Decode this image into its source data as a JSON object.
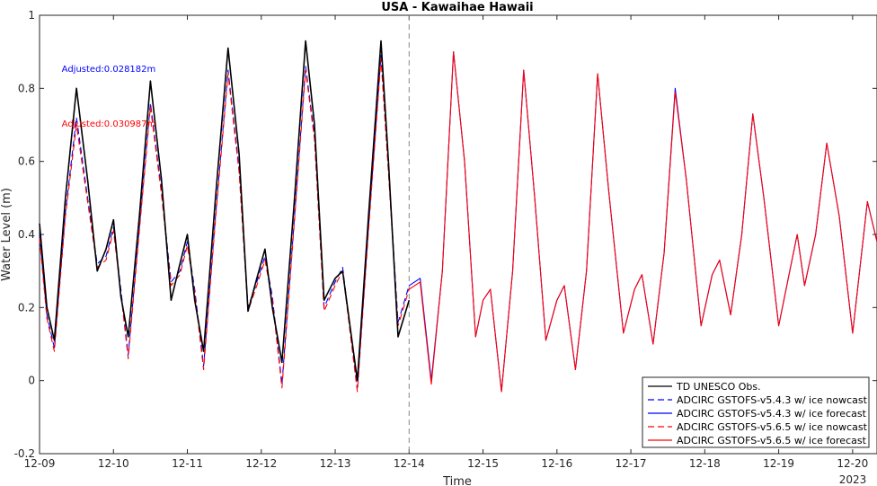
{
  "chart_data": {
    "type": "line",
    "title": "USA - Kawaihae Hawaii",
    "xlabel": "Time",
    "ylabel": "Water Level (m)",
    "xlim": [
      0,
      11.33
    ],
    "ylim": [
      -0.2,
      1
    ],
    "x_ticks": [
      {
        "x": 0,
        "label": "12-09"
      },
      {
        "x": 1,
        "label": "12-10"
      },
      {
        "x": 2,
        "label": "12-11"
      },
      {
        "x": 3,
        "label": "12-12"
      },
      {
        "x": 4,
        "label": "12-13"
      },
      {
        "x": 5,
        "label": "12-14"
      },
      {
        "x": 6,
        "label": "12-15"
      },
      {
        "x": 7,
        "label": "12-16"
      },
      {
        "x": 8,
        "label": "12-17"
      },
      {
        "x": 9,
        "label": "12-18"
      },
      {
        "x": 10,
        "label": "12-19"
      },
      {
        "x": 11,
        "label": "12-20"
      }
    ],
    "x_year_label": "2023",
    "y_ticks": [
      {
        "y": -0.2,
        "label": "-0.2"
      },
      {
        "y": 0,
        "label": "0"
      },
      {
        "y": 0.2,
        "label": "0.2"
      },
      {
        "y": 0.4,
        "label": "0.4"
      },
      {
        "y": 0.6,
        "label": "0.6"
      },
      {
        "y": 0.8,
        "label": "0.8"
      },
      {
        "y": 1,
        "label": "1"
      }
    ],
    "grid": false,
    "legend_position": "bottom-right",
    "forecast_start_x": 5,
    "annotations": [
      {
        "text": "Adjusted:0.028182m",
        "color": "#0000ff",
        "x": 0.3,
        "y": 0.845
      },
      {
        "text": "Adjusted:0.030987m",
        "color": "#ff0000",
        "x": 0.3,
        "y": 0.695
      }
    ],
    "series": [
      {
        "name": "TD UNESCO Obs.",
        "color": "#000000",
        "style": "solid",
        "x": [
          0,
          0.1,
          0.2,
          0.35,
          0.5,
          0.65,
          0.78,
          0.9,
          1.0,
          1.1,
          1.2,
          1.35,
          1.5,
          1.65,
          1.78,
          1.9,
          2.0,
          2.1,
          2.22,
          2.38,
          2.55,
          2.7,
          2.82,
          2.94,
          3.05,
          3.15,
          3.28,
          3.45,
          3.6,
          3.72,
          3.85,
          4.0,
          4.1,
          4.3,
          4.45,
          4.62,
          4.72,
          4.85,
          5.0
        ],
        "y": [
          0.43,
          0.2,
          0.11,
          0.5,
          0.8,
          0.55,
          0.3,
          0.36,
          0.44,
          0.23,
          0.12,
          0.45,
          0.82,
          0.55,
          0.22,
          0.32,
          0.4,
          0.22,
          0.08,
          0.5,
          0.91,
          0.62,
          0.19,
          0.28,
          0.36,
          0.2,
          0.05,
          0.5,
          0.93,
          0.7,
          0.22,
          0.28,
          0.3,
          0.0,
          0.45,
          0.93,
          0.6,
          0.12,
          0.22
        ]
      },
      {
        "name": "ADCIRC GSTOFS-v5.4.3 w/ ice nowcast",
        "color": "#0000ff",
        "style": "dashed",
        "x": [
          0,
          0.1,
          0.2,
          0.35,
          0.5,
          0.65,
          0.78,
          0.9,
          1.0,
          1.1,
          1.2,
          1.35,
          1.5,
          1.65,
          1.78,
          1.9,
          2.0,
          2.1,
          2.22,
          2.38,
          2.55,
          2.7,
          2.82,
          2.94,
          3.05,
          3.15,
          3.28,
          3.45,
          3.6,
          3.72,
          3.85,
          4.0,
          4.1,
          4.3,
          4.45,
          4.62,
          4.72,
          4.85,
          5.0
        ],
        "y": [
          0.4,
          0.18,
          0.09,
          0.46,
          0.72,
          0.5,
          0.32,
          0.34,
          0.42,
          0.25,
          0.07,
          0.42,
          0.76,
          0.52,
          0.27,
          0.3,
          0.38,
          0.25,
          0.04,
          0.45,
          0.85,
          0.58,
          0.2,
          0.27,
          0.34,
          0.23,
          -0.01,
          0.45,
          0.86,
          0.67,
          0.2,
          0.27,
          0.31,
          -0.02,
          0.42,
          0.89,
          0.58,
          0.16,
          0.26
        ]
      },
      {
        "name": "ADCIRC GSTOFS-v5.4.3 w/ ice forecast",
        "color": "#0000ff",
        "style": "solid",
        "x": [
          5.0,
          5.15,
          5.3,
          5.45,
          5.6,
          5.75,
          5.9,
          6.0,
          6.1,
          6.25,
          6.4,
          6.55,
          6.7,
          6.85,
          7.0,
          7.1,
          7.25,
          7.4,
          7.55,
          7.7,
          7.9,
          8.05,
          8.15,
          8.3,
          8.45,
          8.6,
          8.75,
          8.95,
          9.1,
          9.2,
          9.35,
          9.5,
          9.65,
          9.8,
          10.0,
          10.15,
          10.25,
          10.35,
          10.5,
          10.65,
          10.82,
          11.0,
          11.2,
          11.33
        ],
        "y": [
          0.26,
          0.28,
          0.0,
          0.3,
          0.9,
          0.6,
          0.12,
          0.22,
          0.25,
          -0.03,
          0.3,
          0.85,
          0.5,
          0.11,
          0.22,
          0.26,
          0.03,
          0.3,
          0.84,
          0.52,
          0.13,
          0.25,
          0.29,
          0.1,
          0.35,
          0.8,
          0.55,
          0.15,
          0.29,
          0.33,
          0.18,
          0.4,
          0.73,
          0.5,
          0.15,
          0.3,
          0.4,
          0.26,
          0.4,
          0.65,
          0.45,
          0.13,
          0.49,
          0.38
        ]
      },
      {
        "name": "ADCIRC GSTOFS-v5.6.5 w/ ice nowcast",
        "color": "#ff0000",
        "style": "dashed",
        "x": [
          0,
          0.1,
          0.2,
          0.35,
          0.5,
          0.65,
          0.78,
          0.9,
          1.0,
          1.1,
          1.2,
          1.35,
          1.5,
          1.65,
          1.78,
          1.9,
          2.0,
          2.1,
          2.22,
          2.38,
          2.55,
          2.7,
          2.82,
          2.94,
          3.05,
          3.15,
          3.28,
          3.45,
          3.6,
          3.72,
          3.85,
          4.0,
          4.1,
          4.3,
          4.45,
          4.62,
          4.72,
          4.85,
          5.0
        ],
        "y": [
          0.39,
          0.17,
          0.08,
          0.45,
          0.7,
          0.49,
          0.31,
          0.33,
          0.41,
          0.24,
          0.06,
          0.41,
          0.75,
          0.51,
          0.26,
          0.29,
          0.37,
          0.24,
          0.03,
          0.44,
          0.84,
          0.57,
          0.19,
          0.26,
          0.33,
          0.22,
          -0.02,
          0.44,
          0.85,
          0.66,
          0.19,
          0.26,
          0.3,
          -0.03,
          0.41,
          0.88,
          0.57,
          0.15,
          0.25
        ]
      },
      {
        "name": "ADCIRC GSTOFS-v5.6.5 w/ ice forecast",
        "color": "#ff0000",
        "style": "solid",
        "x": [
          5.0,
          5.15,
          5.3,
          5.45,
          5.6,
          5.75,
          5.9,
          6.0,
          6.1,
          6.25,
          6.4,
          6.55,
          6.7,
          6.85,
          7.0,
          7.1,
          7.25,
          7.4,
          7.55,
          7.7,
          7.9,
          8.05,
          8.15,
          8.3,
          8.45,
          8.6,
          8.75,
          8.95,
          9.1,
          9.2,
          9.35,
          9.5,
          9.65,
          9.8,
          10.0,
          10.15,
          10.25,
          10.35,
          10.5,
          10.65,
          10.82,
          11.0,
          11.2,
          11.33
        ],
        "y": [
          0.25,
          0.27,
          -0.01,
          0.3,
          0.9,
          0.6,
          0.12,
          0.22,
          0.25,
          -0.03,
          0.3,
          0.85,
          0.5,
          0.11,
          0.22,
          0.26,
          0.03,
          0.3,
          0.84,
          0.52,
          0.13,
          0.25,
          0.29,
          0.1,
          0.35,
          0.79,
          0.55,
          0.15,
          0.29,
          0.33,
          0.18,
          0.4,
          0.73,
          0.5,
          0.15,
          0.3,
          0.4,
          0.26,
          0.4,
          0.65,
          0.45,
          0.13,
          0.49,
          0.38
        ]
      }
    ]
  }
}
